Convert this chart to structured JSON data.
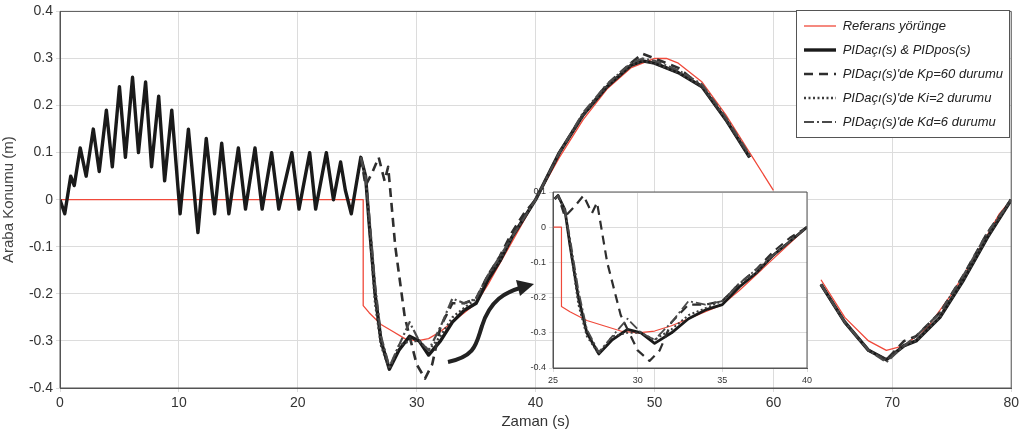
{
  "chart_data": [
    {
      "type": "line",
      "xlabel": "Zaman (s)",
      "ylabel": "Araba Konumu (m)",
      "xlim": [
        0,
        80
      ],
      "ylim": [
        -0.4,
        0.4
      ],
      "xticks": [
        0,
        10,
        20,
        30,
        40,
        50,
        60,
        70,
        80
      ],
      "yticks": [
        -0.4,
        -0.3,
        -0.2,
        -0.1,
        0,
        0.1,
        0.2,
        0.3,
        0.4
      ],
      "grid": true,
      "legend": "top right",
      "marker": "none",
      "series": [
        {
          "name": "Referans yörünge",
          "color": "#f0493a",
          "line_style": "solid",
          "x": [
            0,
            25.5,
            25.5,
            26,
            27,
            28,
            29,
            30,
            31,
            32,
            33,
            34,
            35,
            36,
            37,
            38,
            39,
            40,
            42,
            44,
            46,
            48,
            50,
            51,
            52,
            54,
            56,
            58,
            60,
            61,
            62,
            64,
            66,
            68,
            69.5,
            71,
            73,
            75,
            77,
            79,
            80
          ],
          "values": [
            0,
            0,
            -0.225,
            -0.24,
            -0.265,
            -0.28,
            -0.295,
            -0.3,
            -0.295,
            -0.28,
            -0.26,
            -0.24,
            -0.22,
            -0.18,
            -0.135,
            -0.09,
            -0.045,
            0,
            0.09,
            0.17,
            0.235,
            0.28,
            0.3,
            0.3,
            0.29,
            0.25,
            0.18,
            0.1,
            0.02,
            null,
            null,
            -0.17,
            -0.25,
            -0.3,
            -0.32,
            -0.31,
            -0.27,
            -0.2,
            -0.12,
            -0.03,
            0
          ]
        },
        {
          "name": "PIDaçı(s) & PIDpos(s)",
          "color": "#1a1a1a",
          "line_style": "solid",
          "x": [
            0,
            0.4,
            0.9,
            1.2,
            1.7,
            2.2,
            2.8,
            3.3,
            3.9,
            4.4,
            5,
            5.5,
            6.1,
            6.6,
            7.2,
            7.7,
            8.3,
            8.8,
            9.4,
            10.1,
            10.8,
            11.6,
            12.3,
            13,
            13.6,
            14.2,
            15,
            15.6,
            16.4,
            17,
            17.8,
            18.4,
            19.5,
            20.1,
            21,
            21.5,
            22.4,
            23,
            23.6,
            24,
            24.5,
            25.3,
            25.7,
            26,
            26.5,
            27,
            27.7,
            28.5,
            29.4,
            30.2,
            31,
            32,
            33,
            34,
            35,
            36,
            37,
            38,
            39,
            40,
            42,
            44,
            46,
            48,
            49,
            50,
            52,
            54,
            56,
            58,
            60,
            62,
            64,
            66,
            68,
            69.5,
            71,
            72,
            74,
            76,
            78,
            80
          ],
          "values": [
            0,
            -0.03,
            0.05,
            0.03,
            0.11,
            0.05,
            0.15,
            0.06,
            0.19,
            0.07,
            0.24,
            0.09,
            0.26,
            0.1,
            0.25,
            0.07,
            0.22,
            0.04,
            0.19,
            -0.03,
            0.15,
            -0.07,
            0.13,
            -0.03,
            0.12,
            -0.03,
            0.11,
            -0.02,
            0.11,
            -0.02,
            0.1,
            -0.02,
            0.1,
            -0.02,
            0.1,
            -0.02,
            0.1,
            0,
            0.08,
            0.02,
            -0.03,
            0.09,
            0.05,
            -0.05,
            -0.2,
            -0.3,
            -0.36,
            -0.32,
            -0.29,
            -0.3,
            -0.33,
            -0.3,
            -0.26,
            -0.235,
            -0.22,
            -0.17,
            -0.13,
            -0.08,
            -0.04,
            0,
            0.1,
            0.18,
            0.24,
            0.285,
            0.295,
            0.29,
            0.27,
            0.24,
            0.17,
            0.09,
            null,
            null,
            -0.18,
            -0.26,
            -0.32,
            -0.34,
            -0.31,
            -0.3,
            -0.25,
            -0.17,
            -0.08,
            0
          ]
        },
        {
          "name": "PIDaçı(s)'de Kp=60 durumu",
          "color": "#2e2e2e",
          "line_style": "dashed",
          "x": [
            25.3,
            25.7,
            26.3,
            26.8,
            27.3,
            27.6,
            28.2,
            29,
            30,
            30.7,
            31.3,
            32,
            33,
            34,
            35,
            36,
            37,
            38,
            39,
            40,
            42,
            44,
            46,
            48,
            49,
            50,
            52,
            54,
            56,
            58,
            60,
            62,
            64,
            66,
            68,
            69.5,
            71,
            72,
            74,
            76,
            78,
            80
          ],
          "values": [
            0.09,
            0.03,
            0.06,
            0.09,
            0.04,
            0.07,
            -0.1,
            -0.25,
            -0.35,
            -0.38,
            -0.35,
            -0.27,
            -0.22,
            -0.22,
            -0.21,
            -0.16,
            -0.12,
            -0.07,
            -0.03,
            0,
            0.1,
            0.18,
            0.245,
            0.29,
            0.31,
            0.3,
            0.28,
            0.24,
            0.17,
            0.09,
            null,
            null,
            -0.18,
            -0.26,
            -0.32,
            -0.34,
            -0.3,
            -0.29,
            -0.24,
            -0.16,
            -0.07,
            0
          ]
        },
        {
          "name": "PIDaçı(s)'de Ki=2 durumu",
          "color": "#3c3c3c",
          "line_style": "dotted",
          "x": [
            25.3,
            25.7,
            26,
            26.5,
            27,
            27.7,
            28.5,
            29.4,
            30.2,
            31,
            32,
            33,
            34,
            35,
            36,
            37,
            38,
            39,
            40,
            42,
            44,
            46,
            48,
            49,
            50,
            52,
            54,
            56,
            58,
            60,
            62,
            64,
            66,
            68,
            69.5,
            71,
            72,
            74,
            76,
            78,
            80
          ],
          "values": [
            0.09,
            0.05,
            -0.05,
            -0.22,
            -0.31,
            -0.36,
            -0.31,
            -0.3,
            -0.3,
            -0.32,
            -0.29,
            -0.25,
            -0.23,
            -0.21,
            -0.16,
            -0.13,
            -0.08,
            -0.04,
            0,
            0.1,
            0.18,
            0.24,
            0.285,
            0.295,
            0.29,
            0.27,
            0.24,
            0.17,
            0.09,
            null,
            null,
            -0.18,
            -0.26,
            -0.32,
            -0.34,
            -0.31,
            -0.3,
            -0.25,
            -0.17,
            -0.08,
            0
          ]
        },
        {
          "name": "PIDaçı(s)'de Kd=6 durumu",
          "color": "#4a4a4a",
          "line_style": "dashdot",
          "x": [
            25.3,
            25.7,
            26,
            26.5,
            27,
            27.7,
            28.5,
            29.4,
            30.2,
            31,
            32,
            33,
            34,
            35,
            36,
            37,
            38,
            39,
            40,
            42,
            44,
            46,
            48,
            49,
            50,
            52,
            54,
            56,
            58,
            60,
            62,
            64,
            66,
            68,
            69.5,
            71,
            72,
            74,
            76,
            78,
            80
          ],
          "values": [
            0.09,
            0.05,
            -0.03,
            -0.18,
            -0.29,
            -0.355,
            -0.31,
            -0.26,
            -0.3,
            -0.32,
            -0.27,
            -0.21,
            -0.22,
            -0.21,
            -0.16,
            -0.12,
            -0.08,
            -0.04,
            0,
            0.1,
            0.185,
            0.245,
            0.29,
            0.3,
            0.295,
            0.275,
            0.245,
            0.175,
            0.095,
            null,
            null,
            -0.18,
            -0.26,
            -0.32,
            -0.345,
            -0.31,
            -0.29,
            -0.24,
            -0.16,
            -0.07,
            0
          ]
        }
      ]
    },
    {
      "type": "line",
      "xlim": [
        25,
        40
      ],
      "ylim": [
        -0.4,
        0.1
      ],
      "xticks": [
        25,
        30,
        35,
        40
      ],
      "yticks": [
        -0.4,
        -0.3,
        -0.2,
        -0.1,
        0,
        0.1
      ],
      "grid": true,
      "marker": "none",
      "series": [
        {
          "color": "#f0493a",
          "line_style": "solid",
          "x": [
            25,
            25.5,
            25.5,
            26,
            27,
            28,
            29,
            30,
            31,
            32,
            33,
            34,
            35,
            36,
            37,
            38,
            39,
            40
          ],
          "values": [
            0,
            0,
            -0.225,
            -0.24,
            -0.265,
            -0.28,
            -0.295,
            -0.3,
            -0.295,
            -0.28,
            -0.26,
            -0.24,
            -0.22,
            -0.18,
            -0.135,
            -0.09,
            -0.045,
            0
          ]
        },
        {
          "color": "#1a1a1a",
          "line_style": "solid",
          "x": [
            25.1,
            25.3,
            25.7,
            26,
            26.5,
            27,
            27.7,
            28.5,
            29.4,
            30.2,
            31,
            32,
            33,
            34,
            35,
            36,
            37,
            38,
            39,
            40
          ],
          "values": [
            0.08,
            0.09,
            0.05,
            -0.05,
            -0.2,
            -0.3,
            -0.36,
            -0.32,
            -0.29,
            -0.3,
            -0.33,
            -0.3,
            -0.26,
            -0.235,
            -0.22,
            -0.17,
            -0.13,
            -0.08,
            -0.04,
            0
          ]
        },
        {
          "color": "#2e2e2e",
          "line_style": "dashed",
          "x": [
            25.1,
            25.3,
            25.7,
            26.3,
            26.8,
            27.3,
            27.6,
            28.2,
            29,
            30,
            30.7,
            31.3,
            32,
            33,
            34,
            35,
            36,
            37,
            38,
            39,
            40
          ],
          "values": [
            0.08,
            0.09,
            0.03,
            0.06,
            0.09,
            0.04,
            0.07,
            -0.1,
            -0.25,
            -0.35,
            -0.38,
            -0.35,
            -0.27,
            -0.22,
            -0.22,
            -0.21,
            -0.16,
            -0.12,
            -0.07,
            -0.03,
            0
          ]
        },
        {
          "color": "#3c3c3c",
          "line_style": "dotted",
          "x": [
            25.1,
            25.3,
            25.7,
            26,
            26.5,
            27,
            27.7,
            28.5,
            29.4,
            30.2,
            31,
            32,
            33,
            34,
            35,
            36,
            37,
            38,
            39,
            40
          ],
          "values": [
            0.08,
            0.09,
            0.05,
            -0.05,
            -0.22,
            -0.31,
            -0.36,
            -0.31,
            -0.3,
            -0.3,
            -0.32,
            -0.29,
            -0.25,
            -0.23,
            -0.21,
            -0.16,
            -0.13,
            -0.08,
            -0.04,
            0
          ]
        },
        {
          "color": "#4a4a4a",
          "line_style": "dashdot",
          "x": [
            25.1,
            25.3,
            25.7,
            26,
            26.5,
            27,
            27.7,
            28.5,
            29.4,
            30.2,
            31,
            32,
            33,
            34,
            35,
            36,
            37,
            38,
            39,
            40
          ],
          "values": [
            0.08,
            0.09,
            0.05,
            -0.03,
            -0.18,
            -0.29,
            -0.355,
            -0.31,
            -0.26,
            -0.3,
            -0.32,
            -0.27,
            -0.21,
            -0.22,
            -0.21,
            -0.16,
            -0.12,
            -0.08,
            -0.04,
            0
          ]
        }
      ]
    }
  ]
}
